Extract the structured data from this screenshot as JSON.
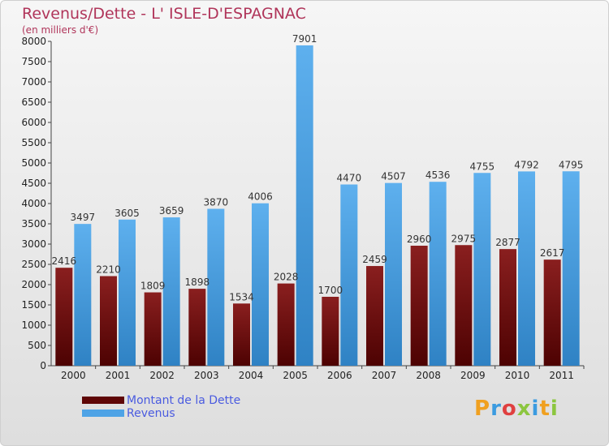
{
  "title": "Revenus/Dette - L' ISLE-D'ESPAGNAC",
  "subtitle": "(en milliers d'€)",
  "legend": {
    "debt_label": "Montant de la Dette",
    "revenue_label": "Revenus"
  },
  "logo": {
    "text": "Proxiti"
  },
  "colors": {
    "debt": "#6b0a0a",
    "debt_light": "#a03a3a",
    "revenue": "#4ea3e6",
    "revenue_dark": "#2f82c4",
    "title": "#b0355a"
  },
  "chart_data": {
    "type": "bar",
    "categories": [
      "2000",
      "2001",
      "2002",
      "2003",
      "2004",
      "2005",
      "2006",
      "2007",
      "2008",
      "2009",
      "2010",
      "2011"
    ],
    "series": [
      {
        "name": "Montant de la Dette",
        "values": [
          2416,
          2210,
          1809,
          1898,
          1534,
          2028,
          1700,
          2459,
          2960,
          2975,
          2877,
          2617
        ]
      },
      {
        "name": "Revenus",
        "values": [
          3497,
          3605,
          3659,
          3870,
          4006,
          7901,
          4470,
          4507,
          4536,
          4755,
          4792,
          4795
        ]
      }
    ],
    "yticks": [
      0,
      500,
      1000,
      1500,
      2000,
      2500,
      3000,
      3500,
      4000,
      4500,
      5000,
      5500,
      6000,
      6500,
      7000,
      7500,
      8000
    ],
    "ylim": [
      0,
      8000
    ],
    "grid": false,
    "legend_position": "bottom-left"
  }
}
